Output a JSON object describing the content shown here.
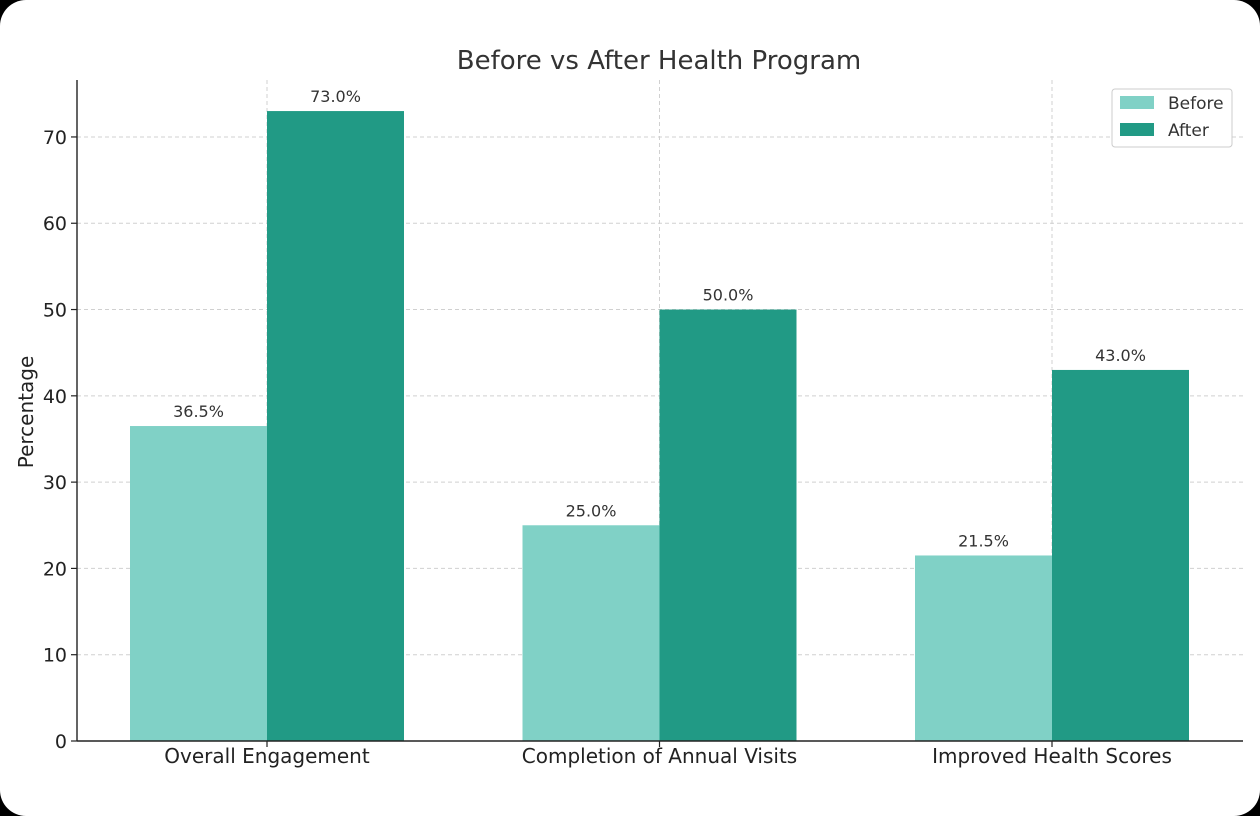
{
  "chart_data": {
    "type": "bar",
    "title": "Before vs After Health Program",
    "xlabel": "",
    "ylabel": "Percentage",
    "categories": [
      "Overall Engagement",
      "Completion of Annual Visits",
      "Improved Health Scores"
    ],
    "series": [
      {
        "name": "Before",
        "values": [
          36.5,
          25.0,
          21.5
        ],
        "labels": [
          "36.5%",
          "25.0%",
          "21.5%"
        ],
        "color": "#80d1c6"
      },
      {
        "name": "After",
        "values": [
          73.0,
          50.0,
          43.0
        ],
        "labels": [
          "73.0%",
          "50.0%",
          "43.0%"
        ],
        "color": "#219a85"
      }
    ],
    "ylim": [
      0,
      76.6
    ],
    "yticks": [
      0,
      10,
      20,
      30,
      40,
      50,
      60,
      70
    ],
    "grid": true,
    "legend": "top-right"
  }
}
